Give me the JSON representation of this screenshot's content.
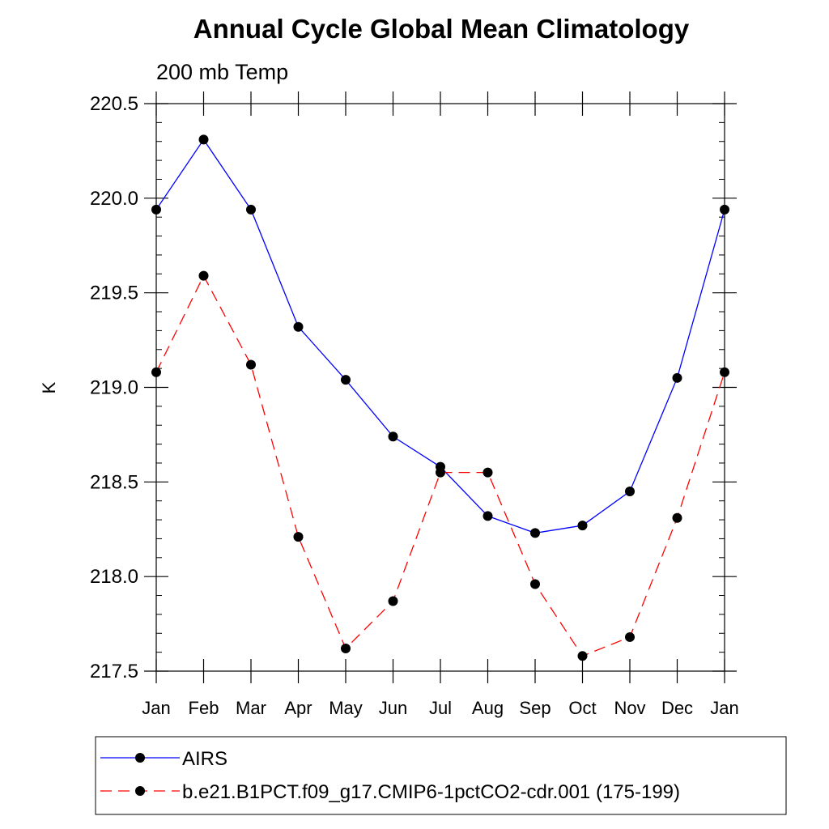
{
  "chart_data": {
    "type": "line",
    "title": "Annual Cycle Global Mean Climatology",
    "subtitle": "200 mb Temp",
    "xlabel": "",
    "ylabel": "K",
    "categories": [
      "Jan",
      "Feb",
      "Mar",
      "Apr",
      "May",
      "Jun",
      "Jul",
      "Aug",
      "Sep",
      "Oct",
      "Nov",
      "Dec",
      "Jan"
    ],
    "ylim": [
      217.5,
      220.5
    ],
    "yticks": [
      "220.5",
      "220.0",
      "219.5",
      "219.0",
      "218.5",
      "218.0",
      "217.5"
    ],
    "ytick_values": [
      220.5,
      220.0,
      219.5,
      219.0,
      218.5,
      218.0,
      217.5
    ],
    "yminor_step": 0.1,
    "grid": false,
    "legend_position": "bottom",
    "series": [
      {
        "name": "AIRS",
        "color": "#0000ff",
        "line_style": "solid",
        "marker": "filled-circle",
        "values": [
          219.94,
          220.31,
          219.94,
          219.32,
          219.04,
          218.74,
          218.58,
          218.32,
          218.23,
          218.27,
          218.45,
          219.05,
          219.94
        ]
      },
      {
        "name": "b.e21.B1PCT.f09_g17.CMIP6-1pctCO2-cdr.001 (175-199)",
        "color": "#ff0000",
        "line_style": "dashed",
        "marker": "filled-circle",
        "values": [
          219.08,
          219.59,
          219.12,
          218.21,
          217.62,
          217.87,
          218.55,
          218.55,
          217.96,
          217.58,
          217.68,
          218.31,
          219.08
        ]
      }
    ]
  }
}
